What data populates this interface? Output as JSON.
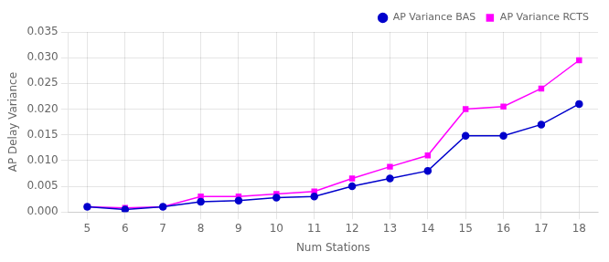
{
  "chart_data": {
    "type": "line",
    "x": [
      5,
      6,
      7,
      8,
      9,
      10,
      11,
      12,
      13,
      14,
      15,
      16,
      17,
      18
    ],
    "series": [
      {
        "name": "AP Variance BAS",
        "color": "#0000CC",
        "marker": "circle",
        "values": [
          0.001,
          0.0005,
          0.001,
          0.002,
          0.0022,
          0.0028,
          0.003,
          0.005,
          0.0065,
          0.008,
          0.0148,
          0.0148,
          0.017,
          0.021
        ]
      },
      {
        "name": "AP Variance RCTS",
        "color": "#FF00FF",
        "marker": "square",
        "values": [
          0.001,
          0.0008,
          0.001,
          0.003,
          0.003,
          0.0035,
          0.004,
          0.0065,
          0.0088,
          0.011,
          0.02,
          0.0205,
          0.024,
          0.0295
        ]
      }
    ],
    "xlabel": "Num Stations",
    "ylabel": "AP Delay Variance",
    "xlim": [
      4.5,
      18.5
    ],
    "ylim": [
      0,
      0.035
    ],
    "xticks": [
      5,
      6,
      7,
      8,
      9,
      10,
      11,
      12,
      13,
      14,
      15,
      16,
      17,
      18
    ],
    "yticks": [
      {
        "value": 0,
        "label": "0.000"
      },
      0.005,
      {
        "value": 0.01,
        "label": "0.010"
      },
      0.015,
      {
        "value": 0.02,
        "label": "0.020"
      },
      0.025,
      {
        "value": 0.03,
        "label": "0.030"
      },
      0.035
    ],
    "grid": true,
    "legend": "upper right"
  }
}
